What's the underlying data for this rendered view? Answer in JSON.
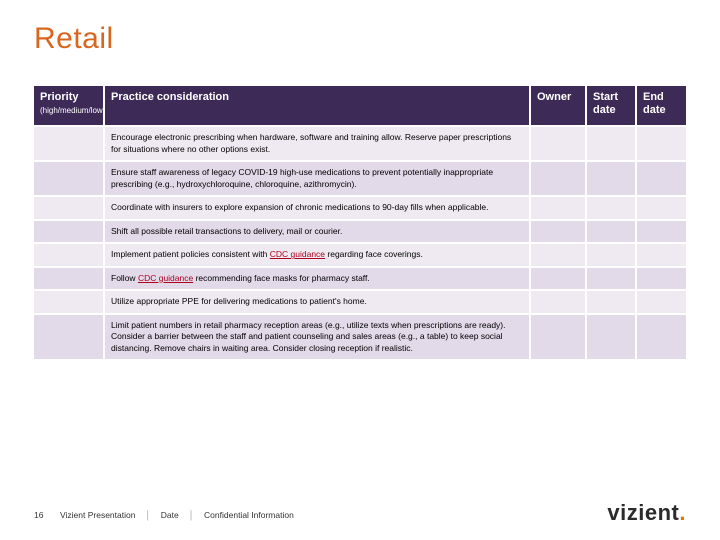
{
  "title": {
    "text": "Retail",
    "color": "#d9661f"
  },
  "table": {
    "header_bg": "#3d2a57",
    "band_a": "#efeaf2",
    "band_b": "#e2d9e9",
    "columns": [
      {
        "label": "Priority",
        "sub": "(high/medium/low)"
      },
      {
        "label": "Practice consideration"
      },
      {
        "label": "Owner"
      },
      {
        "label": "Start date"
      },
      {
        "label": "End date"
      }
    ],
    "rows": [
      {
        "band": "a",
        "practice_plain": "Encourage electronic prescribing when hardware, software and training allow. Reserve paper prescriptions for situations where no other options exist."
      },
      {
        "band": "b",
        "practice_plain": "Ensure staff awareness of legacy COVID-19 high-use medications to prevent potentially inappropriate prescribing (e.g., hydroxychloroquine, chloroquine, azithromycin)."
      },
      {
        "band": "a",
        "practice_plain": "Coordinate with insurers to explore expansion of chronic medications to 90-day fills when applicable."
      },
      {
        "band": "b",
        "practice_plain": "Shift all possible retail transactions to delivery, mail or courier."
      },
      {
        "band": "a",
        "practice_html": "Implement patient policies consistent with <span class=\"link\">CDC guidance</span> regarding face coverings."
      },
      {
        "band": "b",
        "practice_html": "Follow <span class=\"link\">CDC guidance</span> recommending face masks for pharmacy staff."
      },
      {
        "band": "a",
        "practice_plain": "Utilize appropriate PPE for delivering medications to patient's home."
      },
      {
        "band": "b",
        "practice_plain": "Limit patient numbers in retail pharmacy reception areas (e.g., utilize texts when prescriptions are ready). Consider a barrier between the staff and patient counseling and sales areas (e.g., a table) to keep social distancing. Remove chairs in waiting area. Consider closing reception if realistic."
      }
    ]
  },
  "footer": {
    "page": "16",
    "presentation": "Vizient Presentation",
    "date": "Date",
    "confidential": "Confidential Information"
  },
  "brand": {
    "name": "vizient",
    "dot_color": "#e67300"
  }
}
